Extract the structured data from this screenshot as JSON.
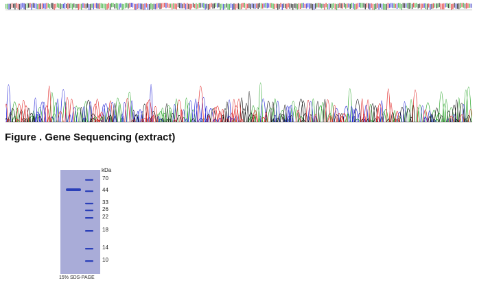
{
  "figure_caption": "Figure . Gene Sequencing (extract)",
  "chromatogram": {
    "trace_colors": {
      "A": "#2ea82e",
      "C": "#2424d6",
      "G": "#111111",
      "T": "#e02626"
    }
  },
  "gel": {
    "unit": "kDa",
    "caption": "15% SDS-PAGE",
    "band_color": "#2a3fb8",
    "marker_labels": [
      "70",
      "44",
      "33",
      "26",
      "22",
      "18",
      "14",
      "10"
    ]
  }
}
